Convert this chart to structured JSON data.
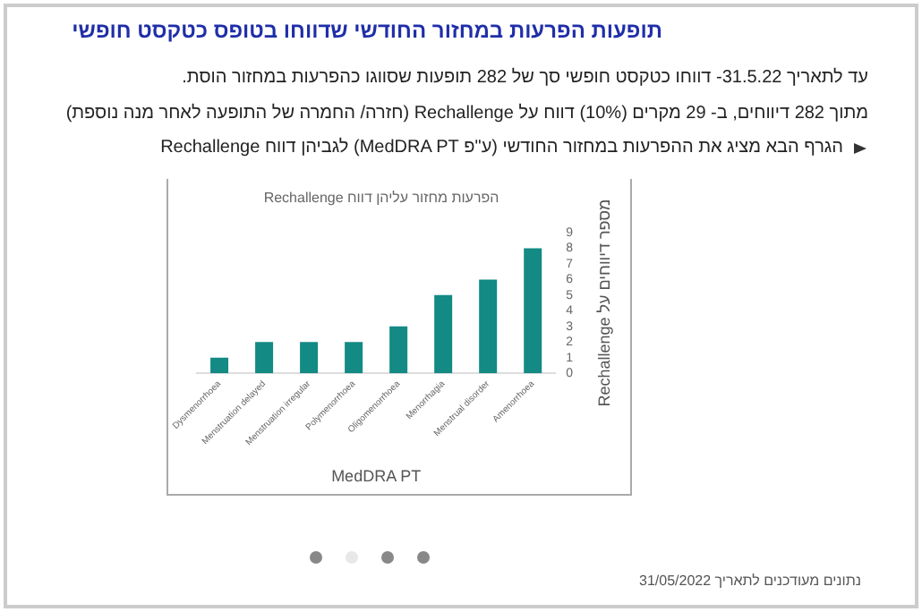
{
  "chart_data": {
    "type": "bar",
    "title": "תופעות הפרעות במחזור החודשי שדווחו בטופס כטקסט חופשי",
    "subtitle": "הפרעות מחזור עליהן דווח Rechallenge",
    "xlabel": "MedDRA PT",
    "ylabel": "מספר דיווחים על Rechallenge",
    "annotations": [
      "עד לתאריך 31.5.22- דווחו כטקסט חופשי סך של 282 תופעות שסווגו כהפרעות במחזור הוסת.",
      "מתוך 282 דיווחים, ב- 29 מקרים (10%) דווח על Rechallenge (חזרה/ החמרה של התופעה לאחר מנה נוספת)",
      "הגרף הבא מציג את ההפרעות במחזור החודשי (ע\"פ MedDRA PT) לגביהן דווח Rechallenge",
      "נתונים מעודכנים לתאריך 31/05/2022"
    ],
    "categories": [
      "Dysmenorrhoea",
      "Menstruation delayed",
      "Menstruation irregular",
      "Polymenorrhoea",
      "Oligomenorrhoea",
      "Menorrhagia",
      "Menstrual disorder",
      "Amenorrhoea"
    ],
    "values": [
      1,
      2,
      2,
      2,
      3,
      5,
      6,
      8
    ],
    "color": "#138a84",
    "ylim": [
      0,
      9
    ],
    "yticks": [
      0,
      1,
      2,
      3,
      4,
      5,
      6,
      7,
      8,
      9
    ],
    "grid": false,
    "legend": false
  }
}
